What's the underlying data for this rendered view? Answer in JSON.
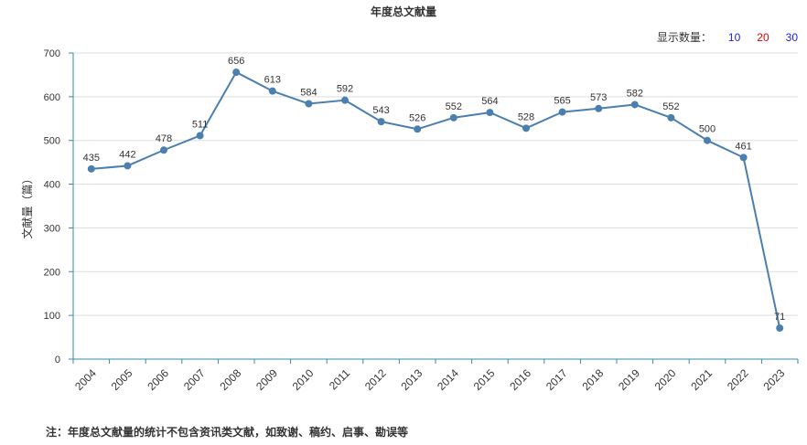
{
  "title": "年度总文献量",
  "display_count": {
    "label": "显示数量：",
    "options": [
      {
        "label": "10",
        "color": "#1a1aff"
      },
      {
        "label": "20",
        "color": "#e00000"
      },
      {
        "label": "30",
        "color": "#1a1aff"
      }
    ]
  },
  "footnote": "注：年度总文献量的统计不包含资讯类文献，如致谢、稿约、启事、勘误等",
  "colors": {
    "line": "#4a7fb0",
    "axis": "#3a8aa8",
    "grid": "#dddddd",
    "text": "#333333"
  },
  "chart_data": {
    "type": "line",
    "title": "年度总文献量",
    "ylabel": "文献量（篇）",
    "xlabel": "",
    "ylim": [
      0,
      700
    ],
    "yticks": [
      0,
      100,
      200,
      300,
      400,
      500,
      600,
      700
    ],
    "grid": true,
    "categories": [
      "2004",
      "2005",
      "2006",
      "2007",
      "2008",
      "2009",
      "2010",
      "2011",
      "2012",
      "2013",
      "2014",
      "2015",
      "2016",
      "2017",
      "2018",
      "2019",
      "2020",
      "2021",
      "2022",
      "2023"
    ],
    "values": [
      435,
      442,
      478,
      511,
      656,
      613,
      584,
      592,
      543,
      526,
      552,
      564,
      528,
      565,
      573,
      582,
      552,
      500,
      461,
      71
    ]
  }
}
